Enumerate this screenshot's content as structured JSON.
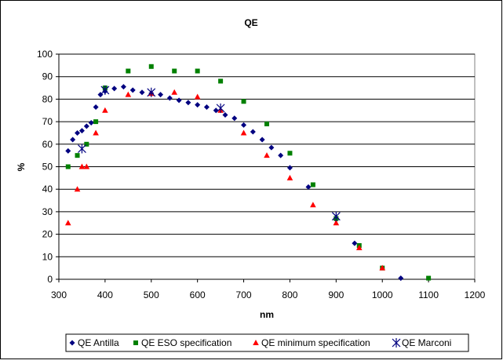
{
  "chart_data": {
    "type": "scatter",
    "title": "QE",
    "xlabel": "nm",
    "ylabel": "%",
    "xlim": [
      300,
      1200
    ],
    "ylim": [
      0,
      100
    ],
    "x_ticks": [
      "300",
      "400",
      "500",
      "600",
      "700",
      "800",
      "900",
      "1000",
      "1100",
      "1200"
    ],
    "y_ticks": [
      "0",
      "10",
      "20",
      "30",
      "40",
      "50",
      "60",
      "70",
      "80",
      "90",
      "100"
    ],
    "grid": "horizontal",
    "legend_position": "bottom",
    "series": [
      {
        "name": "QE Antilla",
        "marker": "diamond",
        "color": "#000080",
        "x": [
          320,
          330,
          340,
          350,
          360,
          370,
          380,
          390,
          400,
          420,
          440,
          460,
          480,
          500,
          520,
          540,
          560,
          580,
          600,
          620,
          640,
          660,
          680,
          700,
          720,
          740,
          760,
          780,
          800,
          840,
          900,
          940,
          1040
        ],
        "y": [
          57,
          62,
          65,
          66,
          68,
          69.5,
          76.5,
          82,
          83.5,
          84.7,
          85.5,
          84,
          83,
          82.6,
          82,
          80.5,
          79.5,
          78.5,
          77.5,
          76.5,
          75,
          73,
          71.5,
          68.5,
          65.5,
          62,
          58.5,
          55,
          49.5,
          41,
          26.5,
          16,
          0.5
        ]
      },
      {
        "name": "QE ESO specification",
        "marker": "square",
        "color": "#008000",
        "x": [
          320,
          340,
          360,
          380,
          400,
          450,
          500,
          550,
          600,
          650,
          700,
          750,
          800,
          850,
          900,
          950,
          1000,
          1100
        ],
        "y": [
          50,
          55,
          60,
          70,
          85,
          92.5,
          94.5,
          92.5,
          92.5,
          88,
          79,
          69,
          56,
          42,
          27,
          15,
          5,
          0.5
        ]
      },
      {
        "name": "QE minimum specification",
        "marker": "triangle",
        "color": "#ff0000",
        "x": [
          320,
          340,
          350,
          360,
          380,
          400,
          450,
          500,
          550,
          600,
          650,
          700,
          750,
          800,
          850,
          900,
          950,
          1000
        ],
        "y": [
          25,
          40,
          50,
          50,
          65,
          75,
          82,
          82.5,
          83,
          81,
          75,
          65,
          55,
          45,
          33,
          25,
          14,
          5
        ]
      },
      {
        "name": "QE Marconi",
        "marker": "star",
        "color": "#000080",
        "x": [
          350,
          400,
          500,
          650,
          900
        ],
        "y": [
          58,
          84,
          83,
          76,
          28
        ]
      }
    ]
  }
}
